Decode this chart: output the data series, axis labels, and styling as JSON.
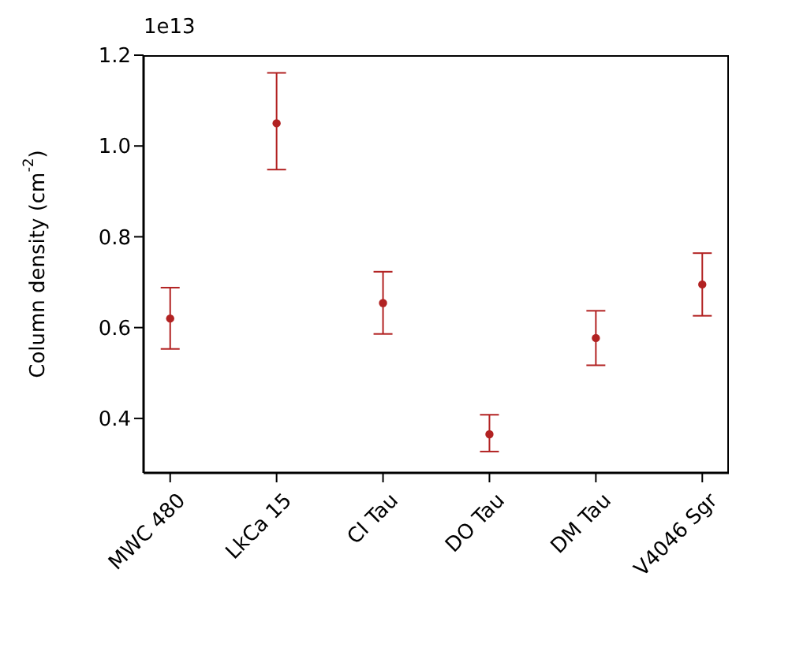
{
  "chart_data": {
    "type": "scatter",
    "categories": [
      "MWC 480",
      "LkCa 15",
      "CI Tau",
      "DO Tau",
      "DM Tau",
      "V4046 Sgr"
    ],
    "series": [
      {
        "color": "#b22222",
        "values": [
          0.62,
          1.05,
          0.654,
          0.365,
          0.577,
          0.695
        ],
        "errors": [
          [
            0.553,
            0.688
          ],
          [
            0.948,
            1.161
          ],
          [
            0.586,
            0.723
          ],
          [
            0.327,
            0.408
          ],
          [
            0.517,
            0.637
          ],
          [
            0.626,
            0.764
          ]
        ]
      }
    ],
    "ylabel": "Column density (cm$^{-2}$)",
    "annotations": [
      "1e13"
    ],
    "ylim": [
      0.28,
      1.2
    ],
    "yticks": [
      {
        "value": 0.4,
        "label": "0.4"
      },
      {
        "value": 0.6,
        "label": "0.6"
      },
      {
        "value": 0.8,
        "label": "0.8"
      },
      {
        "value": 1.0,
        "label": "1.0"
      },
      {
        "value": 1.2,
        "label": "1.2"
      }
    ],
    "marker": "circle",
    "grid": false,
    "legend": false
  }
}
